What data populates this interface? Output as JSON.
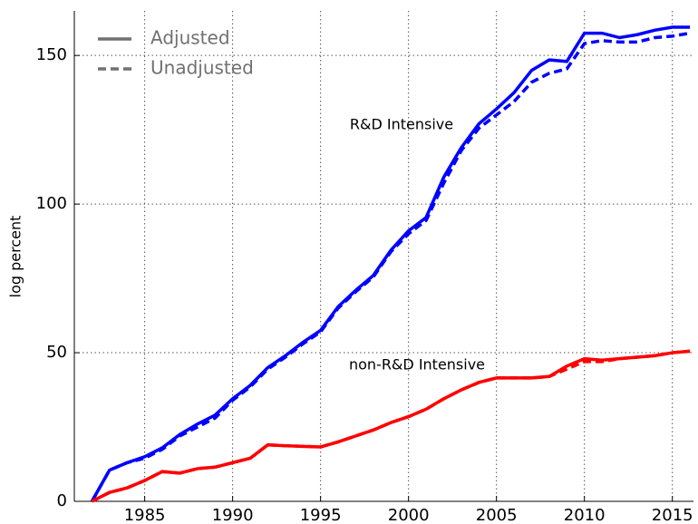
{
  "chart_data": {
    "type": "line",
    "y_label": "log percent",
    "x": [
      1982,
      1983,
      1984,
      1985,
      1986,
      1987,
      1988,
      1989,
      1990,
      1991,
      1992,
      1993,
      1994,
      1995,
      1996,
      1997,
      1998,
      1999,
      2000,
      2001,
      2002,
      2003,
      2004,
      2005,
      2006,
      2007,
      2008,
      2009,
      2010,
      2011,
      2012,
      2013,
      2014,
      2015,
      2016
    ],
    "legend": [
      "Adjusted",
      "Unadjusted"
    ],
    "legend_color": "#707070",
    "groups": [
      {
        "name": "R&D Intensive",
        "color": "#0000ff",
        "adjusted": [
          0,
          10.5,
          13,
          15,
          18,
          22.5,
          26,
          29,
          34.5,
          39,
          45,
          49,
          53.5,
          57.5,
          65.5,
          71,
          76,
          84.5,
          91,
          95.5,
          109,
          119,
          127,
          132,
          137.5,
          145,
          148.5,
          148,
          157.5,
          157.5,
          156,
          157,
          158.5,
          159.5,
          159.5
        ],
        "unadjusted": [
          0,
          10.5,
          13,
          14.5,
          17.5,
          22,
          25,
          28,
          34,
          38.5,
          44.5,
          48.5,
          53,
          57,
          65,
          70.5,
          75.5,
          84,
          90,
          94.5,
          107,
          118,
          125.5,
          130,
          134.5,
          141,
          144,
          145.5,
          154,
          155,
          154.5,
          154.5,
          156,
          156.5,
          157.5
        ]
      },
      {
        "name": "non-R&D Intensive",
        "color": "#ff0000",
        "adjusted": [
          0,
          3,
          4.5,
          7,
          10,
          9.5,
          11,
          11.5,
          13,
          14.5,
          19,
          18.7,
          18.5,
          18.3,
          20,
          22,
          24,
          26.5,
          28.5,
          31,
          34.5,
          37.5,
          40,
          41.5,
          41.5,
          41.5,
          42,
          45.5,
          48,
          47.5,
          48,
          48.5,
          49,
          50,
          50.5
        ],
        "unadjusted": [
          0,
          3,
          4.5,
          7,
          10,
          9.5,
          11,
          11.5,
          13,
          14.5,
          19,
          18.7,
          18.5,
          18.3,
          20,
          22,
          24,
          26.5,
          28.5,
          31,
          34.5,
          37.5,
          40,
          41.5,
          41.5,
          41.5,
          42,
          44.5,
          47,
          47,
          48,
          48.5,
          49,
          50,
          50.5
        ]
      }
    ],
    "xlim": [
      1981,
      2016.2
    ],
    "xticks": [
      1985,
      1990,
      1995,
      2000,
      2005,
      2010,
      2015
    ],
    "ylim": [
      0,
      165
    ],
    "yticks": [
      0,
      50,
      100,
      150
    ],
    "grid": true
  }
}
